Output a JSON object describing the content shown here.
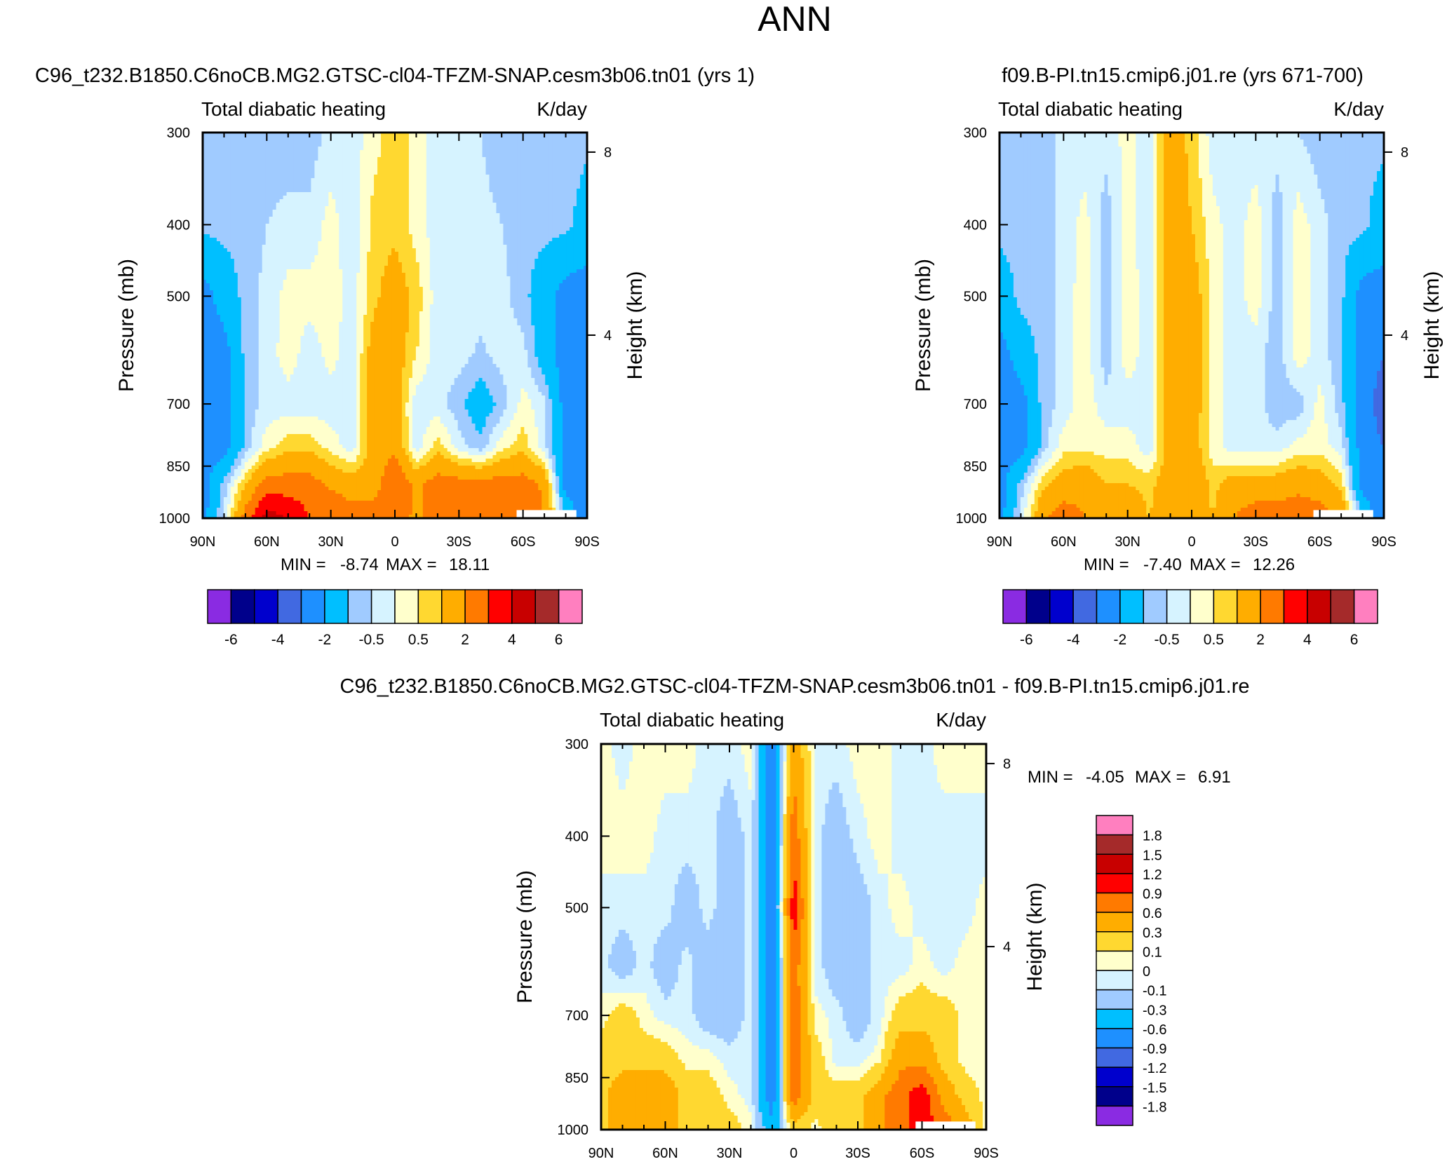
{
  "title": "ANN",
  "colors": {
    "missing": "#ffffff",
    "main_palette": [
      "#8a2be2",
      "#00008b",
      "#0000cd",
      "#4169e1",
      "#1e90ff",
      "#00bfff",
      "#a0cbff",
      "#d6f3ff",
      "#ffffcc",
      "#ffd830",
      "#ffad00",
      "#ff7a00",
      "#ff0000",
      "#c80000",
      "#a52a2a",
      "#ff7fbf"
    ],
    "diff_palette": [
      "#8a2be2",
      "#00008b",
      "#0000cd",
      "#4169e1",
      "#1e90ff",
      "#00bfff",
      "#a0cbff",
      "#d6f3ff",
      "#ffffcc",
      "#ffd830",
      "#ffad00",
      "#ff7a00",
      "#ff0000",
      "#c80000",
      "#a52a2a",
      "#ff7fbf"
    ]
  },
  "chart_data": [
    {
      "id": "test",
      "type": "heatmap",
      "title": "C96_t232.B1850.C6noCB.MG2.GTSC-cl04-TFZM-SNAP.cesm3b06.tn01 (yrs 1)",
      "left_string": "Total diabatic heating",
      "right_string": "K/day",
      "xlabel": "",
      "ylabel": "Pressure (mb)",
      "y2label": "Height (km)",
      "x_ticks": [
        "90N",
        "60N",
        "30N",
        "0",
        "30S",
        "60S",
        "90S"
      ],
      "y_ticks": [
        "300",
        "400",
        "500",
        "700",
        "850",
        "1000"
      ],
      "y_tick_values": [
        300,
        400,
        500,
        700,
        850,
        1000
      ],
      "y2_ticks": [
        "8",
        "4"
      ],
      "y2_tick_values": [
        8,
        4
      ],
      "xlim": [
        90,
        -90
      ],
      "ylim": [
        1000,
        300
      ],
      "stats": {
        "min_label": "MIN =",
        "min": "-8.74",
        "max_label": "MAX =",
        "max": "18.11"
      },
      "colorbar_labels": [
        "-6",
        "-4",
        "-2",
        "-0.5",
        "0.5",
        "2",
        "4",
        "6"
      ],
      "field": {
        "lat": [
          90,
          80,
          70,
          60,
          50,
          40,
          30,
          20,
          10,
          0,
          -10,
          -20,
          -30,
          -40,
          -50,
          -60,
          -70,
          -80,
          -90
        ],
        "lev": [
          300,
          400,
          500,
          600,
          700,
          800,
          900,
          1000
        ],
        "values": [
          [
            -0.5,
            -0.8,
            -0.8,
            -0.8,
            -0.8,
            -0.8,
            -0.3,
            -0.3,
            0.3,
            0.8,
            0.3,
            -0.3,
            -0.3,
            -0.5,
            -0.8,
            -0.8,
            -0.8,
            -0.6,
            -0.8
          ],
          [
            -0.8,
            -0.8,
            -0.8,
            -0.5,
            -0.3,
            -0.3,
            0.2,
            -0.3,
            0.7,
            0.8,
            0.3,
            -0.3,
            -0.3,
            -0.3,
            -0.5,
            -0.8,
            -0.8,
            -0.8,
            -1.5
          ],
          [
            -2.5,
            -1.5,
            -0.8,
            -0.3,
            0.2,
            0.2,
            0.3,
            -0.3,
            0.8,
            1.5,
            0.8,
            -0.3,
            -0.3,
            -0.3,
            -0.3,
            -0.8,
            -1.5,
            -2.5,
            -2.5
          ],
          [
            -2.5,
            -2.5,
            -0.8,
            -0.3,
            0.3,
            -0.3,
            0.2,
            -0.3,
            1.5,
            1.5,
            0.5,
            -0.3,
            -0.3,
            -0.6,
            -0.3,
            -0.3,
            -1.5,
            -2.5,
            -3.0
          ],
          [
            -2.5,
            -2.5,
            -0.8,
            -0.3,
            -0.3,
            -0.3,
            -0.3,
            -0.3,
            1.5,
            1.5,
            -0.3,
            -0.3,
            -0.8,
            -1.5,
            -0.8,
            0.2,
            -0.3,
            -2.5,
            -3.0
          ],
          [
            -2.5,
            -2.5,
            -0.8,
            0.3,
            0.8,
            0.8,
            0.3,
            -0.3,
            1.5,
            1.8,
            -0.3,
            0.8,
            -0.3,
            -0.8,
            0.3,
            0.8,
            -0.3,
            -2.5,
            -3.0
          ],
          [
            -2.5,
            -0.8,
            1.0,
            2.5,
            2.5,
            2.5,
            1.8,
            1.5,
            1.5,
            3.0,
            1.8,
            2.5,
            2.5,
            2.5,
            2.5,
            2.5,
            1.8,
            -2.5,
            -3.0
          ],
          [
            -2.5,
            -0.3,
            2.5,
            4.5,
            4.0,
            3.0,
            3.0,
            2.5,
            2.5,
            2.5,
            1.8,
            2.5,
            2.5,
            2.5,
            2.5,
            3.0,
            2.0,
            -0.8,
            -3.0
          ]
        ],
        "missing_region": {
          "lat": [
            -57,
            -85
          ],
          "lev": [
            975,
            1000
          ]
        }
      }
    },
    {
      "id": "control",
      "type": "heatmap",
      "title": "f09.B-PI.tn15.cmip6.j01.re (yrs 671-700)",
      "left_string": "Total diabatic heating",
      "right_string": "K/day",
      "xlabel": "",
      "ylabel": "Pressure (mb)",
      "y2label": "Height (km)",
      "x_ticks": [
        "90N",
        "60N",
        "30N",
        "0",
        "30S",
        "60S",
        "90S"
      ],
      "y_ticks": [
        "300",
        "400",
        "500",
        "700",
        "850",
        "1000"
      ],
      "y_tick_values": [
        300,
        400,
        500,
        700,
        850,
        1000
      ],
      "y2_ticks": [
        "8",
        "4"
      ],
      "y2_tick_values": [
        8,
        4
      ],
      "xlim": [
        90,
        -90
      ],
      "ylim": [
        1000,
        300
      ],
      "stats": {
        "min_label": "MIN =",
        "min": "-7.40",
        "max_label": "MAX =",
        "max": "12.26"
      },
      "colorbar_labels": [
        "-6",
        "-4",
        "-2",
        "-0.5",
        "0.5",
        "2",
        "4",
        "6"
      ],
      "field": {
        "lat": [
          90,
          80,
          70,
          60,
          50,
          40,
          30,
          20,
          10,
          0,
          -10,
          -20,
          -30,
          -40,
          -50,
          -60,
          -70,
          -80,
          -90
        ],
        "lev": [
          300,
          400,
          500,
          600,
          700,
          800,
          900,
          1000
        ],
        "values": [
          [
            -0.8,
            -0.8,
            -0.8,
            -0.3,
            -0.3,
            -0.3,
            0.2,
            -0.3,
            1.5,
            0.8,
            -0.3,
            -0.3,
            -0.3,
            -0.3,
            -0.5,
            -0.8,
            -0.8,
            -0.8,
            -0.8
          ],
          [
            -0.8,
            -0.8,
            -0.8,
            -0.3,
            0.2,
            -0.8,
            0.2,
            -0.3,
            1.5,
            1.0,
            0.2,
            -0.3,
            0.3,
            -0.8,
            0.3,
            -0.3,
            -0.8,
            -0.8,
            -1.5
          ],
          [
            -1.5,
            -0.8,
            -0.8,
            -0.3,
            0.3,
            -0.8,
            0.3,
            -0.3,
            1.5,
            1.5,
            0.3,
            -0.3,
            0.3,
            -0.8,
            0.3,
            -0.3,
            -0.8,
            -2.5,
            -2.5
          ],
          [
            -2.5,
            -1.5,
            -0.8,
            -0.3,
            0.3,
            -0.8,
            0.3,
            -0.3,
            1.5,
            1.5,
            0.3,
            -0.3,
            -0.3,
            -0.8,
            0.3,
            -0.3,
            -0.8,
            -2.5,
            -3.0
          ],
          [
            -2.5,
            -2.5,
            -0.8,
            -0.3,
            0.3,
            -0.3,
            -0.3,
            -0.3,
            1.5,
            1.5,
            0.3,
            -0.3,
            -0.3,
            -0.8,
            -0.8,
            0.2,
            -0.8,
            -2.5,
            -3.5
          ],
          [
            -2.5,
            -2.5,
            -0.8,
            0.3,
            0.3,
            0.3,
            0.3,
            -0.3,
            1.5,
            1.5,
            0.2,
            -0.3,
            -0.3,
            -0.3,
            0.2,
            0.3,
            -0.3,
            -2.5,
            -3.0
          ],
          [
            -2.5,
            -0.8,
            0.8,
            1.5,
            1.8,
            1.0,
            1.0,
            0.8,
            1.5,
            1.8,
            0.8,
            1.5,
            1.5,
            1.5,
            1.8,
            1.5,
            0.8,
            -2.5,
            -3.0
          ],
          [
            -2.5,
            -0.3,
            1.8,
            2.5,
            2.0,
            1.8,
            1.8,
            1.0,
            1.5,
            1.5,
            1.0,
            2.0,
            2.5,
            2.5,
            2.5,
            2.5,
            2.0,
            -0.8,
            -3.0
          ]
        ],
        "missing_region": {
          "lat": [
            -57,
            -85
          ],
          "lev": [
            975,
            1000
          ]
        }
      }
    },
    {
      "id": "difference",
      "type": "heatmap",
      "title": "C96_t232.B1850.C6noCB.MG2.GTSC-cl04-TFZM-SNAP.cesm3b06.tn01 - f09.B-PI.tn15.cmip6.j01.re",
      "left_string": "Total diabatic heating",
      "right_string": "K/day",
      "xlabel": "",
      "ylabel": "Pressure (mb)",
      "y2label": "Height (km)",
      "x_ticks": [
        "90N",
        "60N",
        "30N",
        "0",
        "30S",
        "60S",
        "90S"
      ],
      "y_ticks": [
        "300",
        "400",
        "500",
        "700",
        "850",
        "1000"
      ],
      "y_tick_values": [
        300,
        400,
        500,
        700,
        850,
        1000
      ],
      "y2_ticks": [
        "8",
        "4"
      ],
      "y2_tick_values": [
        8,
        4
      ],
      "xlim": [
        90,
        -90
      ],
      "ylim": [
        1000,
        300
      ],
      "stats": {
        "min_label": "MIN =",
        "min": "-4.05",
        "max_label": "MAX =",
        "max": "6.91"
      },
      "colorbar_labels": [
        "1.8",
        "1.5",
        "1.2",
        "0.9",
        "0.6",
        "0.3",
        "0.1",
        "0",
        "-0.1",
        "-0.3",
        "-0.6",
        "-0.9",
        "-1.2",
        "-1.5",
        "-1.8"
      ],
      "field": {
        "lat": [
          90,
          80,
          70,
          60,
          50,
          40,
          30,
          20,
          10,
          0,
          -10,
          -20,
          -30,
          -40,
          -50,
          -60,
          -70,
          -80,
          -90
        ],
        "lev": [
          300,
          400,
          500,
          600,
          700,
          800,
          900,
          1000
        ],
        "values": [
          [
            0.05,
            -0.05,
            0.05,
            0.05,
            0.05,
            -0.05,
            -0.05,
            0.05,
            -0.8,
            0.5,
            -0.05,
            -0.05,
            0.05,
            0.05,
            -0.05,
            -0.05,
            0.05,
            0.05,
            0.05
          ],
          [
            0.05,
            0.05,
            0.05,
            -0.05,
            -0.05,
            -0.05,
            -0.2,
            -0.05,
            -0.8,
            0.8,
            -0.05,
            -0.2,
            -0.05,
            0.05,
            -0.05,
            -0.05,
            -0.05,
            -0.05,
            -0.05
          ],
          [
            -0.05,
            -0.05,
            -0.05,
            -0.05,
            -0.2,
            -0.05,
            -0.2,
            -0.05,
            -0.8,
            1.1,
            -0.05,
            -0.2,
            -0.2,
            -0.05,
            0.05,
            -0.05,
            -0.05,
            -0.05,
            0.05
          ],
          [
            -0.05,
            -0.2,
            -0.05,
            -0.2,
            -0.05,
            -0.2,
            -0.2,
            -0.05,
            -0.8,
            0.8,
            -0.05,
            -0.2,
            -0.2,
            -0.05,
            -0.05,
            0.05,
            -0.05,
            0.05,
            0.05
          ],
          [
            0.05,
            0.2,
            0.05,
            -0.05,
            -0.05,
            -0.2,
            -0.2,
            -0.05,
            -0.8,
            0.8,
            0.05,
            -0.05,
            -0.2,
            -0.05,
            0.2,
            0.2,
            0.2,
            0.05,
            0.05
          ],
          [
            0.2,
            0.2,
            0.2,
            0.2,
            0.05,
            0.05,
            -0.05,
            -0.05,
            -0.8,
            0.8,
            0.2,
            -0.05,
            -0.05,
            0.05,
            0.5,
            0.5,
            0.2,
            0.05,
            0.05
          ],
          [
            0.2,
            0.5,
            0.5,
            0.5,
            0.2,
            0.2,
            0.05,
            -0.05,
            -0.8,
            0.8,
            0.2,
            0.2,
            0.2,
            0.5,
            0.8,
            1.1,
            0.5,
            0.2,
            0.05
          ],
          [
            0.2,
            0.5,
            0.5,
            0.5,
            0.2,
            0.2,
            0.2,
            0.05,
            -0.5,
            0.2,
            0.05,
            0.2,
            0.2,
            0.5,
            0.8,
            1.1,
            0.8,
            0.5,
            0.05
          ]
        ],
        "missing_region": {
          "lat": [
            -57,
            -85
          ],
          "lev": [
            975,
            1000
          ]
        }
      }
    }
  ]
}
